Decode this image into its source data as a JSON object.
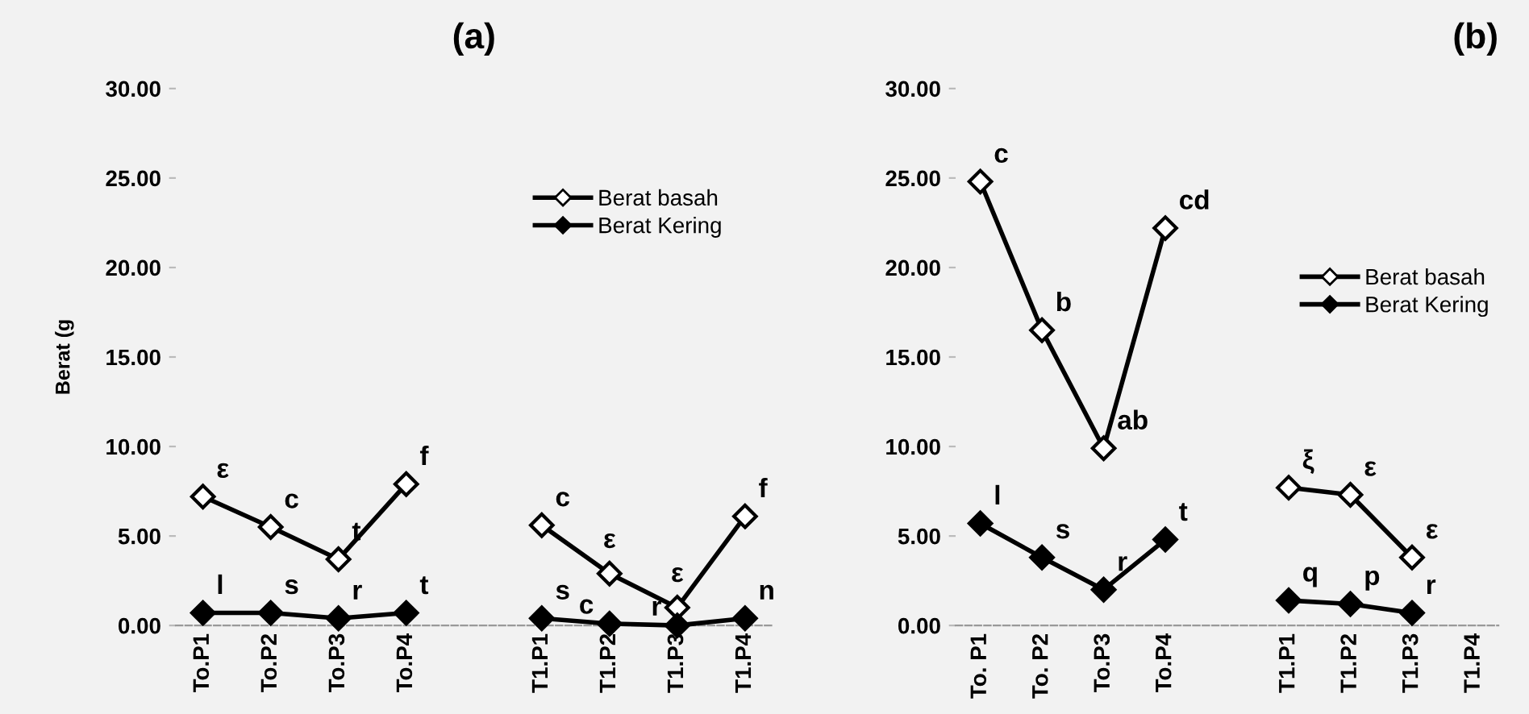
{
  "chart_data": [
    {
      "type": "line",
      "title": "(a)",
      "ylabel": "Berat (g",
      "categories": [
        "To.P1",
        "To.P2",
        "To.P3",
        "To.P4",
        null,
        "T1.P1",
        "T1.P2",
        "T1.P3",
        "T1.P4"
      ],
      "series": [
        {
          "name": "Berat basah",
          "color": "#000000",
          "marker": "diamond",
          "colors": [
            "#ffffff",
            "#ffffff",
            "#ffffff",
            "#ffffff",
            "#ffffff",
            "#ffffff",
            "#ffffff",
            "#ffffff",
            "#ffffff"
          ],
          "values": [
            7.2,
            5.5,
            3.7,
            7.9,
            null,
            5.6,
            2.9,
            1.0,
            6.1
          ]
        },
        {
          "name": "Berat Kering",
          "color": "#000000",
          "marker": "diamond",
          "values": [
            0.7,
            0.7,
            0.4,
            0.7,
            null,
            0.4,
            0.1,
            0.0,
            0.4
          ]
        }
      ],
      "ylim": [
        0,
        30
      ],
      "yticks": [
        {
          "value": 0,
          "label": "0.00"
        },
        {
          "value": 5,
          "label": "5.00"
        },
        {
          "value": 10,
          "label": "10.00"
        },
        {
          "value": 15,
          "label": "15.00"
        },
        {
          "value": 20,
          "label": "20.00"
        },
        {
          "value": 25,
          "label": "25.00"
        },
        {
          "value": 30,
          "label": "30.00"
        }
      ],
      "grid": false,
      "legend": "top right",
      "line_style": "solid",
      "annotations": [
        {
          "text": "ε",
          "x": "To.P1",
          "y": 7.2
        },
        {
          "text": "c",
          "x": "To.P2",
          "y": 5.5
        },
        {
          "text": "t",
          "x": "To.P3",
          "y": 3.7
        },
        {
          "text": "f",
          "x": "To.P4",
          "y": 7.9
        },
        {
          "text": "c",
          "x": "T1.P1",
          "y": 5.6
        },
        {
          "text": "ε",
          "x": "T1.P2",
          "y": 2.9
        },
        {
          "text": "ε",
          "x": "T1.P3",
          "y": 1.0
        },
        {
          "text": "f",
          "x": "T1.P4",
          "y": 6.1
        },
        {
          "text": "l",
          "x": "To.P1",
          "y": 0.7
        },
        {
          "text": "s",
          "x": "To.P2",
          "y": 0.7
        },
        {
          "text": "r",
          "x": "To.P3",
          "y": 0.4
        },
        {
          "text": "t",
          "x": "To.P4",
          "y": 0.7
        },
        {
          "text": "s",
          "x": "T1.P1",
          "y": 0.4
        },
        {
          "text": "c",
          "x": "T1.P2",
          "y": 0.1
        },
        {
          "text": "r",
          "x": "T1.P3",
          "y": 0.0
        },
        {
          "text": "n",
          "x": "T1.P4",
          "y": 0.4
        }
      ]
    },
    {
      "type": "line",
      "title": "(b)",
      "categories": [
        "To. P1",
        "To. P2",
        "To.P3",
        "To.P4",
        null,
        "T1.P1",
        "T1.P2",
        "T1.P3",
        "T1.P4"
      ],
      "series": [
        {
          "name": "Berat basah",
          "color": "#000000",
          "marker": "diamond",
          "colors": [
            "#ffffff",
            "#ffffff",
            "#ffffff",
            "#ffffff",
            "#ffffff",
            "#ffffff",
            "#ffffff",
            "#ffffff",
            "#ffffff"
          ],
          "values": [
            24.8,
            16.5,
            9.9,
            22.2,
            null,
            7.7,
            7.3,
            3.8,
            null
          ]
        },
        {
          "name": "Berat Kering",
          "color": "#000000",
          "marker": "diamond",
          "values": [
            5.7,
            3.8,
            2.0,
            4.8,
            null,
            1.4,
            1.2,
            0.7,
            null
          ]
        }
      ],
      "ylim": [
        0,
        30
      ],
      "yticks": [
        {
          "value": 0,
          "label": "0.00"
        },
        {
          "value": 5,
          "label": "5.00"
        },
        {
          "value": 10,
          "label": "10.00"
        },
        {
          "value": 15,
          "label": "15.00"
        },
        {
          "value": 20,
          "label": "20.00"
        },
        {
          "value": 25,
          "label": "25.00"
        },
        {
          "value": 30,
          "label": "30.00"
        }
      ],
      "grid": false,
      "legend": "right",
      "line_style": "solid",
      "annotations": [
        {
          "text": "c",
          "x": "To. P1",
          "y": 24.8
        },
        {
          "text": "b",
          "x": "To. P2",
          "y": 16.5
        },
        {
          "text": "ab",
          "x": "To.P3",
          "y": 9.9
        },
        {
          "text": "cd",
          "x": "To.P4",
          "y": 22.2
        },
        {
          "text": "ξ",
          "x": "T1.P1",
          "y": 7.7
        },
        {
          "text": "ε",
          "x": "T1.P2",
          "y": 7.3
        },
        {
          "text": "ε",
          "x": "T1.P3",
          "y": 3.8
        },
        {
          "text": "l",
          "x": "To. P1",
          "y": 5.7
        },
        {
          "text": "s",
          "x": "To. P2",
          "y": 3.8
        },
        {
          "text": "r",
          "x": "To.P3",
          "y": 2.0
        },
        {
          "text": "t",
          "x": "To.P4",
          "y": 4.8
        },
        {
          "text": "q",
          "x": "T1.P1",
          "y": 1.4
        },
        {
          "text": "p",
          "x": "T1.P2",
          "y": 1.2
        },
        {
          "text": "r",
          "x": "T1.P3",
          "y": 0.7
        }
      ]
    }
  ]
}
